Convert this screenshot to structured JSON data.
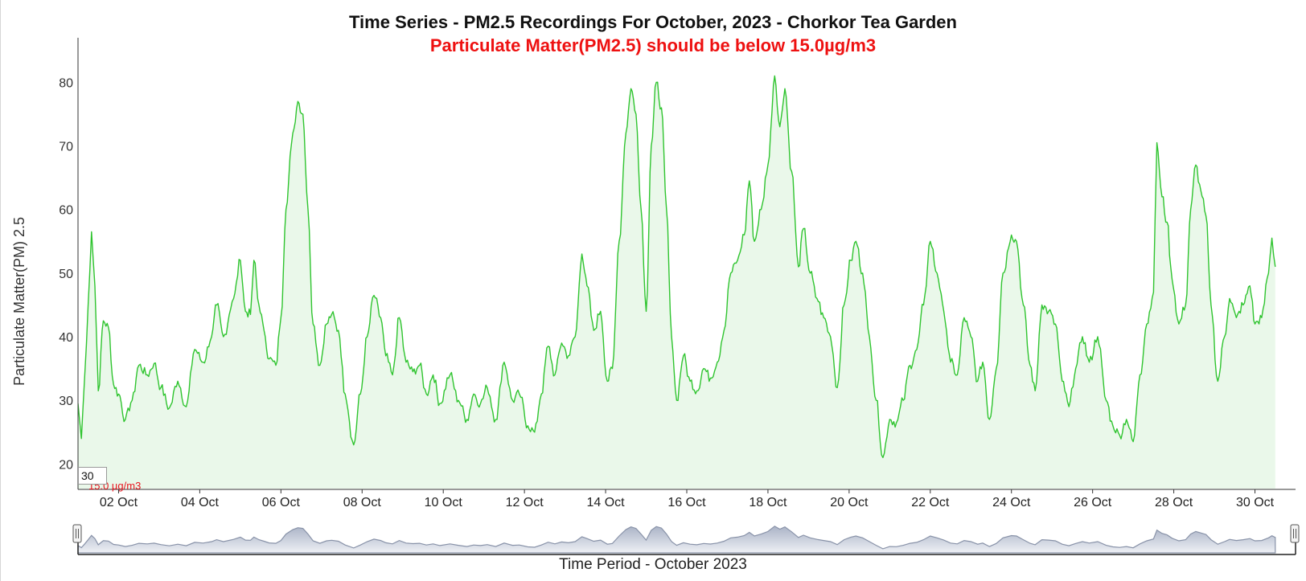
{
  "chart_data": {
    "type": "area",
    "title": "Time Series - PM2.5 Recordings For October, 2023 - Chorkor Tea Garden",
    "subtitle": "Particulate Matter(PM2.5) should be below 15.0µg/m3",
    "ylabel": "Particulate Matter(PM) 2.5",
    "xlabel": "Time Period - October 2023",
    "x_range": [
      "2023-10-01",
      "2023-10-31"
    ],
    "ylim": [
      16,
      87
    ],
    "yticks": [
      20,
      30,
      40,
      50,
      60,
      70,
      80
    ],
    "xtick_labels": [
      {
        "date": "2023-10-02",
        "label": "02 Oct"
      },
      {
        "date": "2023-10-04",
        "label": "04 Oct"
      },
      {
        "date": "2023-10-06",
        "label": "06 Oct"
      },
      {
        "date": "2023-10-08",
        "label": "08 Oct"
      },
      {
        "date": "2023-10-10",
        "label": "10 Oct"
      },
      {
        "date": "2023-10-12",
        "label": "12 Oct"
      },
      {
        "date": "2023-10-14",
        "label": "14 Oct"
      },
      {
        "date": "2023-10-16",
        "label": "16 Oct"
      },
      {
        "date": "2023-10-18",
        "label": "18 Oct"
      },
      {
        "date": "2023-10-20",
        "label": "20 Oct"
      },
      {
        "date": "2023-10-22",
        "label": "22 Oct"
      },
      {
        "date": "2023-10-24",
        "label": "24 Oct"
      },
      {
        "date": "2023-10-26",
        "label": "26 Oct"
      },
      {
        "date": "2023-10-28",
        "label": "28 Oct"
      },
      {
        "date": "2023-10-30",
        "label": "30 Oct"
      }
    ],
    "threshold": {
      "value": 15.0,
      "label": "15.0 µg/m3",
      "color": "#e8141e"
    },
    "colors": {
      "line": "#2fc42f",
      "fill": "#eaf8ea",
      "title": "#111111",
      "subtitle": "#ee1111",
      "navigator_fill_top": "#aab3c6",
      "navigator_fill_bottom": "#eef0f5",
      "navigator_line": "#8892a8"
    },
    "grid": false,
    "series": [
      {
        "points": [
          [
            "2023-10-01 00:00",
            29.5
          ],
          [
            "2023-10-01 02:00",
            24
          ],
          [
            "2023-10-01 04:00",
            34
          ],
          [
            "2023-10-01 06:00",
            45
          ],
          [
            "2023-10-01 08:00",
            56.5
          ],
          [
            "2023-10-01 10:00",
            48
          ],
          [
            "2023-10-01 12:00",
            31.5
          ],
          [
            "2023-10-01 15:00",
            42.5
          ],
          [
            "2023-10-01 18:00",
            41.5
          ],
          [
            "2023-10-01 21:00",
            32.5
          ],
          [
            "2023-10-02 00:00",
            31
          ],
          [
            "2023-10-02 04:00",
            27
          ],
          [
            "2023-10-02 08:00",
            30
          ],
          [
            "2023-10-02 12:00",
            35.5
          ],
          [
            "2023-10-02 17:00",
            34
          ],
          [
            "2023-10-02 21:00",
            35.8
          ],
          [
            "2023-10-03 01:00",
            32
          ],
          [
            "2023-10-03 06:00",
            28.8
          ],
          [
            "2023-10-03 11:00",
            33
          ],
          [
            "2023-10-03 16:00",
            29
          ],
          [
            "2023-10-03 21:00",
            38
          ],
          [
            "2023-10-04 02:00",
            36
          ],
          [
            "2023-10-04 07:00",
            40
          ],
          [
            "2023-10-04 10:00",
            45
          ],
          [
            "2023-10-04 14:00",
            40
          ],
          [
            "2023-10-04 20:00",
            46
          ],
          [
            "2023-10-05 00:00",
            52
          ],
          [
            "2023-10-05 03:00",
            44
          ],
          [
            "2023-10-05 06:00",
            43.5
          ],
          [
            "2023-10-05 08:00",
            52
          ],
          [
            "2023-10-05 11:00",
            45
          ],
          [
            "2023-10-05 14:00",
            41
          ],
          [
            "2023-10-05 17:00",
            36.5
          ],
          [
            "2023-10-05 21:00",
            35.5
          ],
          [
            "2023-10-06 00:00",
            43
          ],
          [
            "2023-10-06 03:00",
            60
          ],
          [
            "2023-10-06 07:00",
            72
          ],
          [
            "2023-10-06 10:00",
            77
          ],
          [
            "2023-10-06 13:00",
            75
          ],
          [
            "2023-10-06 16:00",
            60
          ],
          [
            "2023-10-06 19:00",
            42
          ],
          [
            "2023-10-06 23:00",
            35.5
          ],
          [
            "2023-10-07 03:00",
            42
          ],
          [
            "2023-10-07 06:00",
            43.5
          ],
          [
            "2023-10-07 10:00",
            41
          ],
          [
            "2023-10-07 14:00",
            31
          ],
          [
            "2023-10-07 19:00",
            23
          ],
          [
            "2023-10-07 23:00",
            31
          ],
          [
            "2023-10-08 03:00",
            40
          ],
          [
            "2023-10-08 07:00",
            46.5
          ],
          [
            "2023-10-08 11:00",
            43
          ],
          [
            "2023-10-08 14:00",
            37
          ],
          [
            "2023-10-08 18:00",
            34
          ],
          [
            "2023-10-08 22:00",
            43
          ],
          [
            "2023-10-09 02:00",
            36
          ],
          [
            "2023-10-09 06:00",
            34.5
          ],
          [
            "2023-10-09 10:00",
            35.5
          ],
          [
            "2023-10-09 14:00",
            31
          ],
          [
            "2023-10-09 18:00",
            34
          ],
          [
            "2023-10-09 22:00",
            29.5
          ],
          [
            "2023-10-10 04:00",
            34
          ],
          [
            "2023-10-10 09:00",
            30
          ],
          [
            "2023-10-10 14:00",
            27
          ],
          [
            "2023-10-10 18:00",
            31
          ],
          [
            "2023-10-10 22:00",
            29.5
          ],
          [
            "2023-10-11 02:00",
            32
          ],
          [
            "2023-10-11 07:00",
            27
          ],
          [
            "2023-10-11 12:00",
            36
          ],
          [
            "2023-10-11 17:00",
            30
          ],
          [
            "2023-10-11 21:00",
            31
          ],
          [
            "2023-10-12 02:00",
            26
          ],
          [
            "2023-10-12 06:00",
            25
          ],
          [
            "2023-10-12 10:00",
            31
          ],
          [
            "2023-10-12 14:00",
            38.5
          ],
          [
            "2023-10-12 18:00",
            34
          ],
          [
            "2023-10-12 22:00",
            39
          ],
          [
            "2023-10-13 02:00",
            37
          ],
          [
            "2023-10-13 06:00",
            40
          ],
          [
            "2023-10-13 10:00",
            53
          ],
          [
            "2023-10-13 13:00",
            48
          ],
          [
            "2023-10-13 17:00",
            41
          ],
          [
            "2023-10-13 21:00",
            44
          ],
          [
            "2023-10-14 01:00",
            33
          ],
          [
            "2023-10-14 04:00",
            35
          ],
          [
            "2023-10-14 08:00",
            55
          ],
          [
            "2023-10-14 12:00",
            72
          ],
          [
            "2023-10-14 15:00",
            79
          ],
          [
            "2023-10-14 18:00",
            75
          ],
          [
            "2023-10-14 21:00",
            60
          ],
          [
            "2023-10-15 00:00",
            44
          ],
          [
            "2023-10-15 03:00",
            70
          ],
          [
            "2023-10-15 06:00",
            80
          ],
          [
            "2023-10-15 09:00",
            76
          ],
          [
            "2023-10-15 12:00",
            60
          ],
          [
            "2023-10-15 15:00",
            40
          ],
          [
            "2023-10-15 18:00",
            30
          ],
          [
            "2023-10-15 22:00",
            37
          ],
          [
            "2023-10-16 02:00",
            33
          ],
          [
            "2023-10-16 06:00",
            31.5
          ],
          [
            "2023-10-16 10:00",
            35
          ],
          [
            "2023-10-16 14:00",
            33.5
          ],
          [
            "2023-10-16 18:00",
            36
          ],
          [
            "2023-10-16 22:00",
            41
          ],
          [
            "2023-10-17 02:00",
            50
          ],
          [
            "2023-10-17 06:00",
            52
          ],
          [
            "2023-10-17 10:00",
            56
          ],
          [
            "2023-10-17 13:00",
            64.5
          ],
          [
            "2023-10-17 16:00",
            55
          ],
          [
            "2023-10-17 20:00",
            60
          ],
          [
            "2023-10-18 00:00",
            67
          ],
          [
            "2023-10-18 04:00",
            81
          ],
          [
            "2023-10-18 07:00",
            73
          ],
          [
            "2023-10-18 10:00",
            79
          ],
          [
            "2023-10-18 14:00",
            66
          ],
          [
            "2023-10-18 18:00",
            51
          ],
          [
            "2023-10-18 21:00",
            57
          ],
          [
            "2023-10-19 01:00",
            50
          ],
          [
            "2023-10-19 05:00",
            46
          ],
          [
            "2023-10-19 09:00",
            43
          ],
          [
            "2023-10-19 13:00",
            40
          ],
          [
            "2023-10-19 17:00",
            32
          ],
          [
            "2023-10-19 21:00",
            45
          ],
          [
            "2023-10-20 01:00",
            52
          ],
          [
            "2023-10-20 04:00",
            55
          ],
          [
            "2023-10-20 08:00",
            50
          ],
          [
            "2023-10-20 12:00",
            40
          ],
          [
            "2023-10-20 16:00",
            30
          ],
          [
            "2023-10-20 20:00",
            21
          ],
          [
            "2023-10-21 00:00",
            27
          ],
          [
            "2023-10-21 04:00",
            26.5
          ],
          [
            "2023-10-21 08:00",
            30
          ],
          [
            "2023-10-21 12:00",
            35.5
          ],
          [
            "2023-10-21 16:00",
            38
          ],
          [
            "2023-10-21 20:00",
            45
          ],
          [
            "2023-10-22 00:00",
            55
          ],
          [
            "2023-10-22 04:00",
            50
          ],
          [
            "2023-10-22 08:00",
            44
          ],
          [
            "2023-10-22 12:00",
            36
          ],
          [
            "2023-10-22 16:00",
            34
          ],
          [
            "2023-10-22 20:00",
            43
          ],
          [
            "2023-10-23 00:00",
            40
          ],
          [
            "2023-10-23 04:00",
            33
          ],
          [
            "2023-10-23 07:00",
            36
          ],
          [
            "2023-10-23 11:00",
            27
          ],
          [
            "2023-10-23 15:00",
            35
          ],
          [
            "2023-10-23 19:00",
            50
          ],
          [
            "2023-10-24 00:00",
            56
          ],
          [
            "2023-10-24 03:00",
            55
          ],
          [
            "2023-10-24 07:00",
            45
          ],
          [
            "2023-10-24 11:00",
            35.5
          ],
          [
            "2023-10-24 14:00",
            31.5
          ],
          [
            "2023-10-24 18:00",
            45
          ],
          [
            "2023-10-24 22:00",
            44
          ],
          [
            "2023-10-25 02:00",
            42
          ],
          [
            "2023-10-25 06:00",
            33
          ],
          [
            "2023-10-25 10:00",
            29
          ],
          [
            "2023-10-25 14:00",
            35
          ],
          [
            "2023-10-25 18:00",
            40
          ],
          [
            "2023-10-25 22:00",
            36
          ],
          [
            "2023-10-26 03:00",
            40
          ],
          [
            "2023-10-26 08:00",
            30
          ],
          [
            "2023-10-26 12:00",
            26
          ],
          [
            "2023-10-26 16:00",
            24.5
          ],
          [
            "2023-10-26 20:00",
            27
          ],
          [
            "2023-10-27 00:00",
            23.5
          ],
          [
            "2023-10-27 04:00",
            34
          ],
          [
            "2023-10-27 08:00",
            42
          ],
          [
            "2023-10-27 12:00",
            47
          ],
          [
            "2023-10-27 14:00",
            70.5
          ],
          [
            "2023-10-27 17:00",
            62
          ],
          [
            "2023-10-27 20:00",
            58
          ],
          [
            "2023-10-27 23:00",
            49
          ],
          [
            "2023-10-28 03:00",
            42
          ],
          [
            "2023-10-28 07:00",
            45
          ],
          [
            "2023-10-28 10:00",
            60
          ],
          [
            "2023-10-28 13:00",
            67
          ],
          [
            "2023-10-28 16:00",
            63
          ],
          [
            "2023-10-28 19:00",
            59
          ],
          [
            "2023-10-28 22:00",
            45
          ],
          [
            "2023-10-29 02:00",
            33
          ],
          [
            "2023-10-29 06:00",
            40
          ],
          [
            "2023-10-29 09:00",
            46
          ],
          [
            "2023-10-29 13:00",
            43
          ],
          [
            "2023-10-29 17:00",
            45
          ],
          [
            "2023-10-29 21:00",
            48
          ],
          [
            "2023-10-30 00:00",
            42
          ],
          [
            "2023-10-30 04:00",
            43
          ],
          [
            "2023-10-30 08:00",
            50
          ],
          [
            "2023-10-30 10:00",
            55.5
          ],
          [
            "2023-10-30 12:00",
            51
          ]
        ]
      }
    ]
  },
  "controls": {
    "range_input_value": "30"
  }
}
